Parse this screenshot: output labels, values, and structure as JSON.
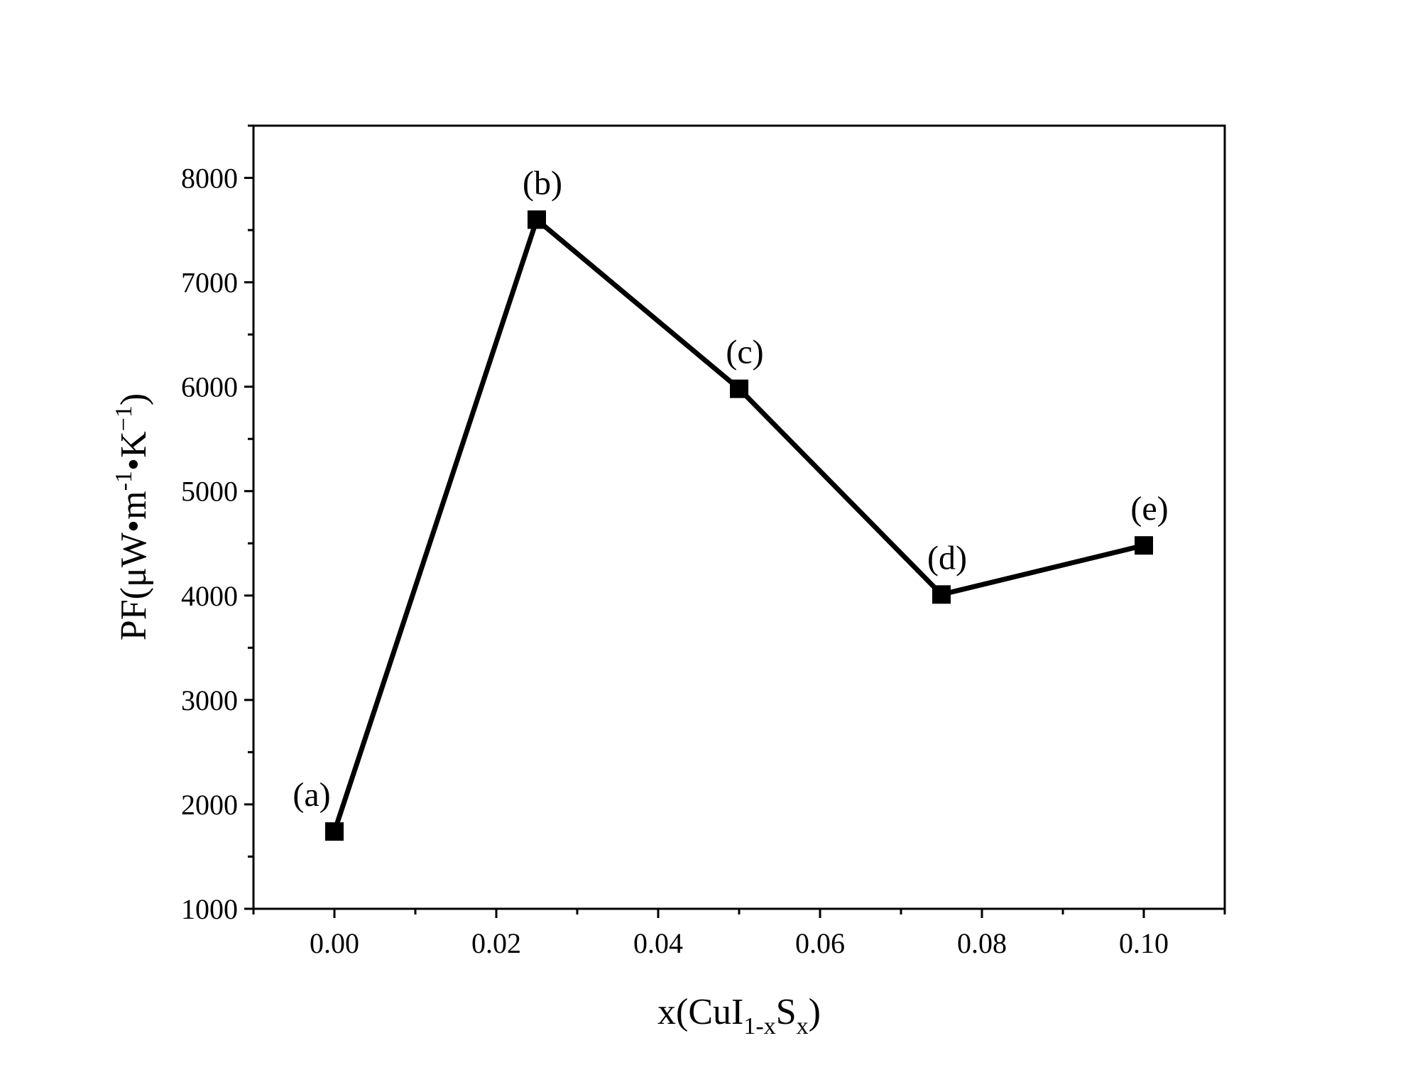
{
  "chart_data": {
    "type": "line",
    "title": "",
    "xlabel": {
      "main": "x(CuI",
      "sub1": "1-x",
      "mid": "S",
      "sub2": "x",
      "end": ")"
    },
    "ylabel": {
      "main": "PF(μW•m",
      "sup1": "-1",
      "mid": "•K",
      "sup2": "−1",
      "end": ")"
    },
    "xlim": [
      -0.01,
      0.11
    ],
    "ylim": [
      1000,
      8500
    ],
    "xticks": [
      0.0,
      0.02,
      0.04,
      0.06,
      0.08,
      0.1
    ],
    "xtick_labels": [
      "0.00",
      "0.02",
      "0.04",
      "0.06",
      "0.08",
      "0.10"
    ],
    "yticks": [
      1000,
      2000,
      3000,
      4000,
      5000,
      6000,
      7000,
      8000
    ],
    "ytick_labels": [
      "1000",
      "2000",
      "3000",
      "4000",
      "5000",
      "6000",
      "7000",
      "8000"
    ],
    "grid": false,
    "marker": "square",
    "color": "#000000",
    "series": [
      {
        "x": [
          0.0,
          0.025,
          0.05,
          0.075,
          0.1
        ],
        "y": [
          1740,
          7600,
          5980,
          4010,
          4480
        ],
        "point_labels": [
          "(a)",
          "(b)",
          "(c)",
          "(d)",
          "(e)"
        ]
      }
    ]
  }
}
